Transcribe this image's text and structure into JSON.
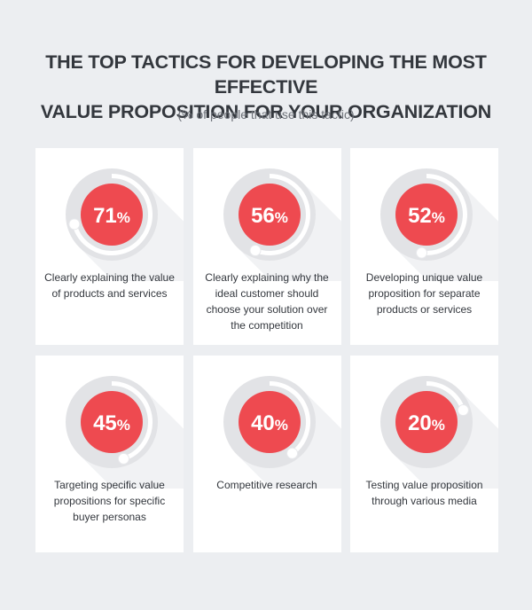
{
  "header": {
    "title_line1": "THE TOP TACTICS FOR DEVELOPING THE MOST EFFECTIVE",
    "title_line2": "VALUE PROPOSITION FOR YOUR ORGANIZATION",
    "subtitle": "(% of people that use this tactic)"
  },
  "colors": {
    "accent": "#ee4a50",
    "ring": "#e2e3e6",
    "shadow": "#f1f2f4",
    "card": "#ffffff",
    "background": "#eceef1",
    "text": "#33373d"
  },
  "chart_data": {
    "type": "bar",
    "title": "THE TOP TACTICS FOR DEVELOPING THE MOST EFFECTIVE VALUE PROPOSITION FOR YOUR ORGANIZATION",
    "subtitle": "(% of people that use this tactic)",
    "unit": "%",
    "categories": [
      "Clearly explaining the value of products and services",
      "Clearly explaining why the ideal customer should choose your solution over the competition",
      "Developing unique value proposition for separate products or services",
      "Targeting specific value propositions for specific buyer personas",
      "Competitive research",
      "Testing value proposition through various media"
    ],
    "values": [
      71,
      56,
      52,
      45,
      40,
      20
    ],
    "value_labels": [
      "71%",
      "56%",
      "52%",
      "45%",
      "40%",
      "20%"
    ]
  }
}
